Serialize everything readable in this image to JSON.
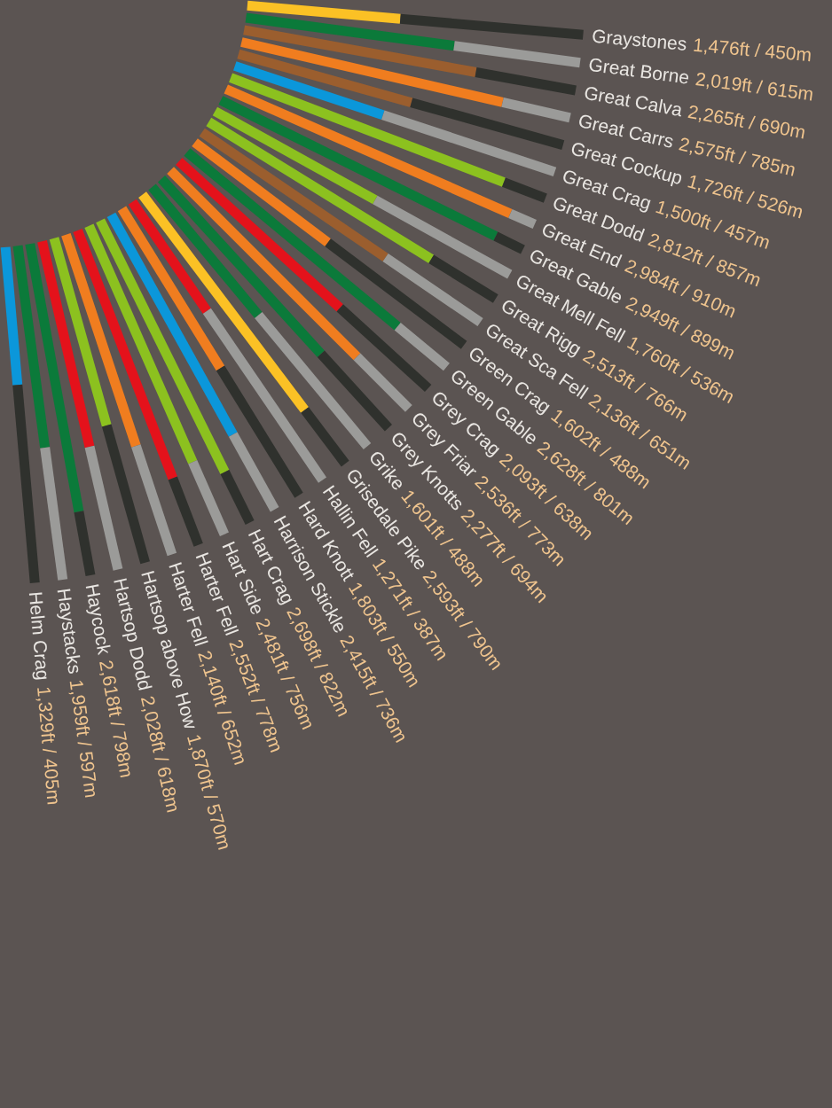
{
  "chart_data": {
    "type": "other",
    "categories": [
      "Graystones",
      "Great Borne",
      "Great Calva",
      "Great Carrs",
      "Great Cockup",
      "Great Crag",
      "Great Dodd",
      "Great End",
      "Great Gable",
      "Great Mell Fell",
      "Great Rigg",
      "Great Sca Fell",
      "Green Crag",
      "Green Gable",
      "Grey Crag",
      "Grey Friar",
      "Grey Knotts",
      "Grike",
      "Grisedale Pike",
      "Hallin Fell",
      "Hard Knott",
      "Harrison Stickle",
      "Hart Crag",
      "Hart Side",
      "Harter Fell",
      "Harter Fell",
      "Hartsop above How",
      "Hartsop Dodd",
      "Haycock",
      "Haystacks",
      "Helm Crag"
    ],
    "values": [
      1476,
      2019,
      2265,
      2575,
      1726,
      1500,
      2812,
      2984,
      2949,
      1760,
      2513,
      2136,
      1602,
      2628,
      2093,
      2536,
      2277,
      1601,
      2593,
      1271,
      1803,
      2415,
      2698,
      2481,
      2552,
      2140,
      1870,
      2028,
      2618,
      1959,
      1329
    ],
    "colors": [
      "#fbc125",
      "#0b7a3a",
      "#9b5e2e",
      "#f07d1f",
      "#9b5e2e",
      "#0b97da",
      "#8cc11f",
      "#f07d1f",
      "#0b7a3a",
      "#8cc11f",
      "#8cc11f",
      "#9b5e2e",
      "#f07d1f",
      "#0b7a3a",
      "#e4121b",
      "#f07d1f",
      "#0b7a3a",
      "#0b7a3a",
      "#fbc125",
      "#e4121b",
      "#f07d1f",
      "#0b97da",
      "#8cc11f",
      "#8cc11f",
      "#e4121b",
      "#f07d1f",
      "#8cc11f",
      "#e4121b",
      "#0b7a3a",
      "#0b7a3a",
      "#0b97da"
    ],
    "value_labels": [
      "1,476ft / 450m",
      "2,019ft / 615m",
      "2,265ft / 690m",
      "2,575ft / 785m",
      "1,726ft / 526m",
      "1,500ft / 457m",
      "2,812ft / 857m",
      "2,984ft / 910m",
      "2,949ft / 899m",
      "1,760ft / 536m",
      "2,513ft / 766m",
      "2,136ft / 651m",
      "1,602ft / 488m",
      "2,628ft / 801m",
      "2,093ft / 638m",
      "2,536ft / 773m",
      "2,277ft / 694m",
      "1,601ft / 488m",
      "2,593ft / 790m",
      "1,271ft / 387m",
      "1,803ft / 550m",
      "2,415ft / 736m",
      "2,698ft / 822m",
      "2,481ft / 756m",
      "2,552ft / 778m",
      "2,140ft / 652m",
      "1,870ft / 570m",
      "2,028ft / 618m",
      "2,618ft / 798m",
      "1,959ft / 597m",
      "1,329ft / 405m"
    ]
  }
}
